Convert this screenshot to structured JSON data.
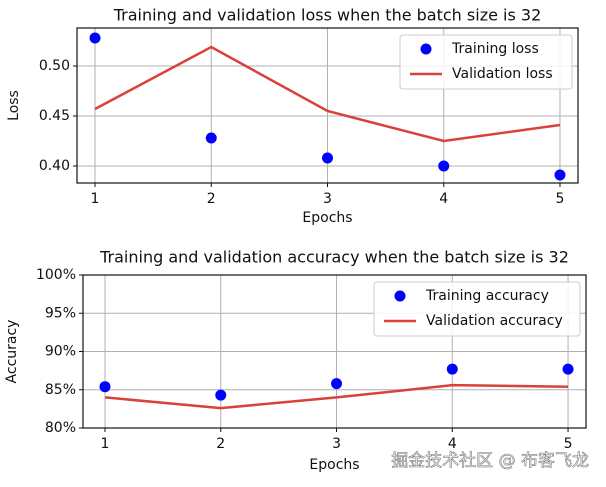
{
  "chart_data": [
    {
      "type": "line",
      "title": "Training and validation loss when the batch size is 32",
      "x_label": "Epochs",
      "y_label": "Loss",
      "x": [
        1,
        2,
        3,
        4,
        5
      ],
      "series": [
        {
          "name": "Training loss",
          "color": "#0000ff",
          "mode": "markers",
          "values": [
            0.528,
            0.428,
            0.408,
            0.4,
            0.391
          ]
        },
        {
          "name": "Validation loss",
          "color": "#d9413a",
          "mode": "line",
          "values": [
            0.457,
            0.519,
            0.455,
            0.425,
            0.441
          ]
        }
      ],
      "xlim": [
        0.845,
        5.155
      ],
      "ylim": [
        0.383,
        0.538
      ],
      "xticks": [
        1,
        2,
        3,
        4,
        5
      ],
      "yticks": [
        {
          "value": 0.4,
          "label": "0.40"
        },
        {
          "value": 0.45,
          "label": "0.45"
        },
        {
          "value": 0.5,
          "label": "0.50"
        }
      ],
      "grid": true,
      "legend": "upper right"
    },
    {
      "type": "line",
      "title": "Training and validation accuracy when the batch size is 32",
      "x_label": "Epochs",
      "y_label": "Accuracy",
      "x": [
        1,
        2,
        3,
        4,
        5
      ],
      "series": [
        {
          "name": "Training accuracy",
          "color": "#0000ff",
          "mode": "markers",
          "values": [
            85.4,
            84.3,
            85.8,
            87.7,
            87.7
          ]
        },
        {
          "name": "Validation accuracy",
          "color": "#d9413a",
          "mode": "line",
          "values": [
            84.0,
            82.6,
            84.0,
            85.6,
            85.4
          ]
        }
      ],
      "xlim": [
        0.81,
        5.155
      ],
      "ylim": [
        80,
        100
      ],
      "xticks": [
        1,
        2,
        3,
        4,
        5
      ],
      "yticks": [
        {
          "value": 80,
          "label": "80%"
        },
        {
          "value": 85,
          "label": "85%"
        },
        {
          "value": 90,
          "label": "90%"
        },
        {
          "value": 95,
          "label": "95%"
        },
        {
          "value": 100,
          "label": "100%"
        }
      ],
      "grid": true,
      "legend": "upper right"
    }
  ],
  "watermark": "掘金技术社区 @ 布客飞龙"
}
